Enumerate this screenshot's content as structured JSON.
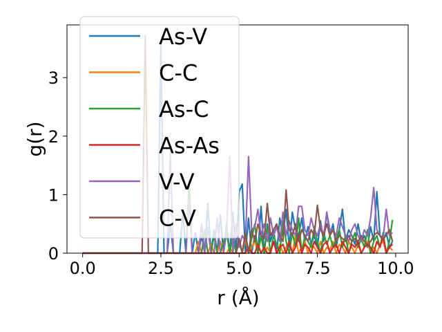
{
  "chart_data": {
    "type": "line",
    "xlabel": "r (Å)",
    "ylabel": "g(r)",
    "xlim": [
      -0.5,
      10.4
    ],
    "ylim": [
      0,
      3.9
    ],
    "xticks": [
      0.0,
      2.5,
      5.0,
      7.5,
      10.0
    ],
    "xtick_labels": [
      "0.0",
      "2.5",
      "5.0",
      "7.5",
      "10.0"
    ],
    "yticks": [
      0,
      1,
      2,
      3
    ],
    "ytick_labels": [
      "0",
      "1",
      "2",
      "3"
    ],
    "grid": false,
    "legend_position": "upper-left",
    "x": [
      0.0,
      0.1,
      0.2,
      0.3,
      0.4,
      0.5,
      0.6,
      0.7,
      0.8,
      0.9,
      1.0,
      1.1,
      1.2,
      1.3,
      1.4,
      1.5,
      1.6,
      1.7,
      1.8,
      1.9,
      2.0,
      2.1,
      2.2,
      2.3,
      2.4,
      2.5,
      2.6,
      2.7,
      2.8,
      2.9,
      3.0,
      3.1,
      3.2,
      3.3,
      3.4,
      3.5,
      3.6,
      3.7,
      3.8,
      3.9,
      4.0,
      4.1,
      4.2,
      4.3,
      4.4,
      4.5,
      4.6,
      4.7,
      4.8,
      4.9,
      5.0,
      5.1,
      5.2,
      5.3,
      5.4,
      5.5,
      5.6,
      5.7,
      5.8,
      5.9,
      6.0,
      6.1,
      6.2,
      6.3,
      6.4,
      6.5,
      6.6,
      6.7,
      6.8,
      6.9,
      7.0,
      7.1,
      7.2,
      7.3,
      7.4,
      7.5,
      7.6,
      7.7,
      7.8,
      7.9,
      8.0,
      8.1,
      8.2,
      8.3,
      8.4,
      8.5,
      8.6,
      8.7,
      8.8,
      8.9,
      9.0,
      9.1,
      9.2,
      9.3,
      9.4,
      9.5,
      9.6,
      9.7,
      9.8,
      9.9
    ],
    "series": [
      {
        "name": "As-V",
        "color": "#1f77b4",
        "values": [
          0,
          0,
          0,
          0,
          0,
          0,
          0,
          0,
          0,
          0,
          0,
          0,
          0,
          0,
          0,
          0,
          0,
          0,
          0,
          0,
          0,
          0,
          0,
          0,
          0,
          3.6,
          0,
          0,
          0.5,
          0,
          0,
          0,
          0.7,
          0,
          0,
          0,
          0.35,
          0,
          0.3,
          0,
          0.85,
          0,
          0.4,
          0,
          0.65,
          0,
          0.5,
          0,
          0.7,
          0,
          1.05,
          1.18,
          0,
          0.6,
          0,
          0.3,
          0,
          0.8,
          0,
          0.5,
          0.2,
          0.4,
          0,
          0.6,
          0.3,
          0.75,
          0.1,
          0.7,
          0.4,
          0.3,
          0.6,
          0.2,
          0.45,
          0.15,
          0.3,
          0.1,
          0.55,
          0.2,
          0.7,
          0.3,
          0.5,
          0.1,
          0.4,
          0.75,
          0.2,
          0.4,
          0.3,
          0.15,
          0.5,
          0.2,
          0.3,
          0.1,
          0.45,
          0.2,
          1.05,
          0.3,
          0.2,
          0.35,
          0.1,
          0.2
        ]
      },
      {
        "name": "C-C",
        "color": "#ff7f0e",
        "values": [
          0,
          0,
          0,
          0,
          0,
          0,
          0,
          0,
          0,
          0,
          0,
          0,
          0,
          0,
          0,
          0,
          0,
          0,
          0,
          0,
          0,
          0,
          0,
          0,
          0,
          0,
          0,
          0,
          0,
          0,
          0,
          0,
          0,
          0,
          0,
          0,
          0,
          0.2,
          0,
          0,
          0,
          0.15,
          0,
          0,
          0.2,
          0,
          0,
          0.1,
          0,
          0,
          0.2,
          0,
          0.25,
          0,
          0.1,
          0.2,
          0,
          0.3,
          0,
          0.1,
          0,
          0.2,
          0,
          0.15,
          0,
          0.1,
          0.2,
          0,
          0.3,
          0,
          0.1,
          0.2,
          0,
          0.15,
          0.1,
          0,
          0.2,
          0,
          0.1,
          0.05,
          0.2,
          0,
          0.15,
          0.1,
          0,
          0.2,
          0.1,
          0,
          0.15,
          0,
          0.1,
          0.2,
          0,
          0.1,
          0,
          0.15,
          0.2,
          0,
          0.1,
          0.05
        ]
      },
      {
        "name": "As-C",
        "color": "#2ca02c",
        "values": [
          0,
          0,
          0,
          0,
          0,
          0,
          0,
          0,
          0,
          0,
          0,
          0,
          0,
          0,
          0,
          0,
          0,
          0,
          0,
          0,
          0,
          0,
          0,
          0,
          0,
          0,
          0,
          0,
          0,
          0,
          0,
          0,
          0,
          0,
          1.25,
          0,
          0,
          0,
          0,
          0.4,
          0,
          0,
          0.3,
          0,
          0,
          0.2,
          0.35,
          0,
          0.3,
          0,
          0.2,
          0,
          0.35,
          0,
          0.25,
          0.5,
          0,
          0.3,
          0,
          0.45,
          0,
          0.3,
          0.15,
          0,
          0.55,
          0.2,
          0,
          0.35,
          0.1,
          0.6,
          0,
          0.3,
          0.2,
          0.1,
          0.45,
          0.2,
          0,
          0.35,
          0.15,
          0.3,
          0.1,
          0.25,
          0.4,
          0.1,
          0.3,
          0,
          0.2,
          0.35,
          0.1,
          0.25,
          0.1,
          0.4,
          0,
          0.2,
          0.3,
          0.1,
          0.35,
          0,
          0.2,
          0.57
        ]
      },
      {
        "name": "As-As",
        "color": "#d62728",
        "values": [
          0,
          0,
          0,
          0,
          0,
          0,
          0,
          0,
          0,
          0,
          0,
          0,
          0,
          0,
          0,
          0,
          0,
          0,
          0,
          0,
          0,
          0,
          0,
          0,
          0,
          0,
          0,
          0,
          0,
          0,
          0,
          0,
          0,
          0,
          0,
          0,
          0,
          0,
          0,
          0,
          0,
          0,
          0,
          0,
          0,
          0,
          0,
          0,
          0,
          0,
          0,
          0,
          0,
          0.1,
          0,
          0,
          0.15,
          0,
          0.1,
          0,
          0,
          0.2,
          0,
          0.1,
          0.15,
          0,
          0.2,
          0,
          0.1,
          0.3,
          0,
          0.15,
          0.1,
          0,
          0.2,
          0.1,
          0,
          0.15,
          0.2,
          0,
          0.1,
          0.15,
          0,
          0.2,
          0.1,
          0,
          0.15,
          0.1,
          0.2,
          0,
          0.1,
          0.15,
          0.1,
          0,
          0.2,
          0.1,
          0.3,
          0,
          0.1,
          0.15
        ]
      },
      {
        "name": "V-V",
        "color": "#9467bd",
        "values": [
          0,
          0,
          0,
          0,
          0,
          0,
          0,
          0,
          0,
          0,
          0,
          0,
          0,
          0,
          0,
          0,
          0,
          0,
          0,
          0,
          0,
          0,
          0,
          0,
          0,
          0,
          0,
          0,
          1.75,
          0,
          0,
          0,
          0,
          0,
          0.9,
          0,
          0,
          0,
          0.5,
          0,
          0.45,
          0,
          0,
          0.6,
          0,
          0,
          0.35,
          1.65,
          0,
          0.5,
          0.1,
          0.3,
          0.2,
          1.65,
          0.4,
          0.45,
          0.75,
          0.3,
          0.5,
          0.2,
          0.6,
          0.3,
          0.45,
          0.2,
          0.7,
          0.3,
          0.55,
          0.4,
          0.3,
          0.8,
          0.8,
          0.4,
          0.3,
          0.6,
          0.4,
          0.3,
          0.5,
          0.3,
          0.7,
          0.4,
          0.4,
          0.3,
          0.6,
          0.45,
          0.3,
          0.2,
          0.4,
          0.5,
          0.3,
          0.2,
          0.4,
          0.3,
          0.6,
          1.12,
          0.4,
          0.3,
          0.25,
          0.75,
          0.3,
          0.35
        ]
      },
      {
        "name": "C-V",
        "color": "#8c564b",
        "values": [
          0,
          0,
          0,
          0,
          0,
          0,
          0,
          0,
          0,
          0,
          0,
          0,
          0,
          0,
          0,
          0,
          0,
          0,
          0,
          0,
          3.72,
          0,
          0,
          0,
          0,
          0,
          0,
          0,
          0,
          0,
          0,
          0,
          0,
          0,
          0,
          0,
          0,
          0,
          0,
          0,
          0,
          0,
          0,
          0,
          0,
          0,
          0,
          0,
          0,
          0,
          0.25,
          0,
          0.35,
          0,
          0.4,
          0.2,
          0.5,
          0.3,
          0.25,
          0.85,
          0.3,
          0.4,
          0.5,
          0.3,
          0.2,
          1.08,
          0.4,
          0.3,
          0.5,
          0.2,
          0.4,
          0.3,
          0.2,
          0.4,
          0.3,
          0.82,
          0.4,
          0.3,
          0.5,
          0.3,
          0.4,
          0.2,
          0.3,
          0.25,
          0.2,
          0.3,
          0.2,
          0.25,
          0.2,
          0.3,
          0.2,
          0.15,
          0.2,
          0.3,
          0.35,
          0.3,
          0.25,
          0.3,
          0.4,
          0.2
        ]
      }
    ]
  }
}
